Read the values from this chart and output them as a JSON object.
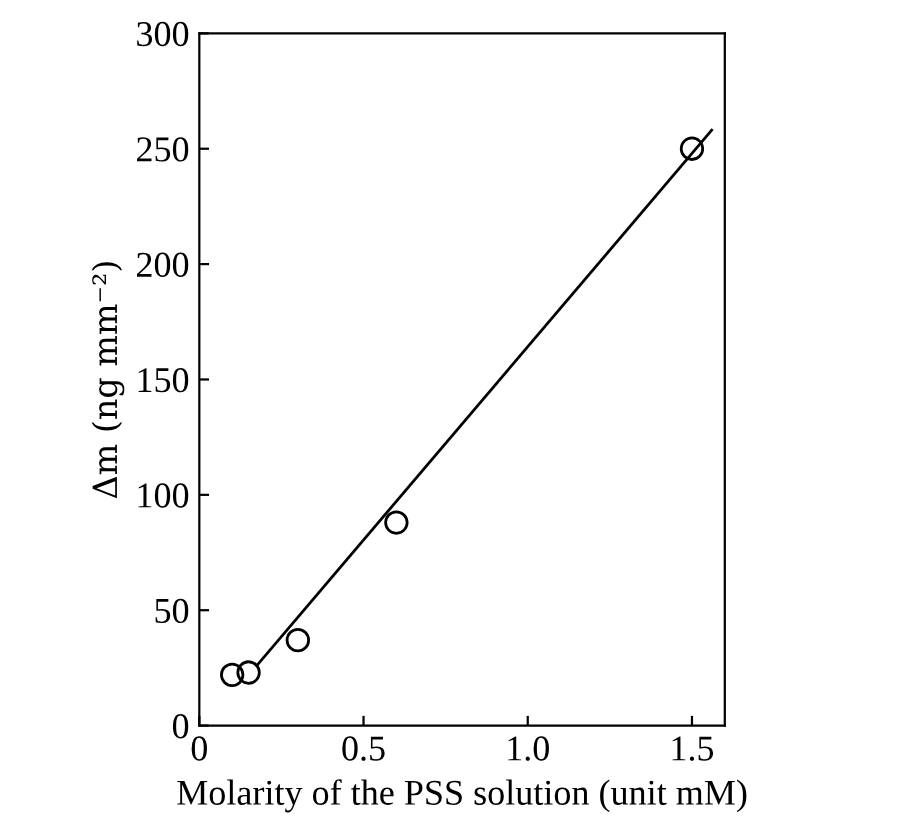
{
  "chart_data": {
    "type": "scatter",
    "xlabel": "Molarity of the PSS solution (unit mM)",
    "ylabel": "Δm (ng mm⁻²)",
    "series": [
      {
        "x": [
          0.1,
          0.15,
          0.3,
          0.6,
          1.5
        ],
        "values": [
          22,
          23,
          37,
          88,
          250
        ],
        "color": "#000000",
        "marker": "circle"
      },
      {
        "type": "line",
        "x": [
          0.175,
          1.56
        ],
        "values": [
          26,
          258
        ],
        "color": "#000000",
        "marker": "none"
      }
    ],
    "xlim": [
      0,
      1.6
    ],
    "ylim": [
      0,
      300
    ],
    "xticks": [
      {
        "value": 0,
        "label": "0"
      },
      0.5,
      {
        "value": 1,
        "label": "1.0"
      },
      1.5
    ],
    "yticks": [
      0,
      50,
      100,
      150,
      200,
      250,
      300
    ],
    "grid": false,
    "legend": false
  }
}
